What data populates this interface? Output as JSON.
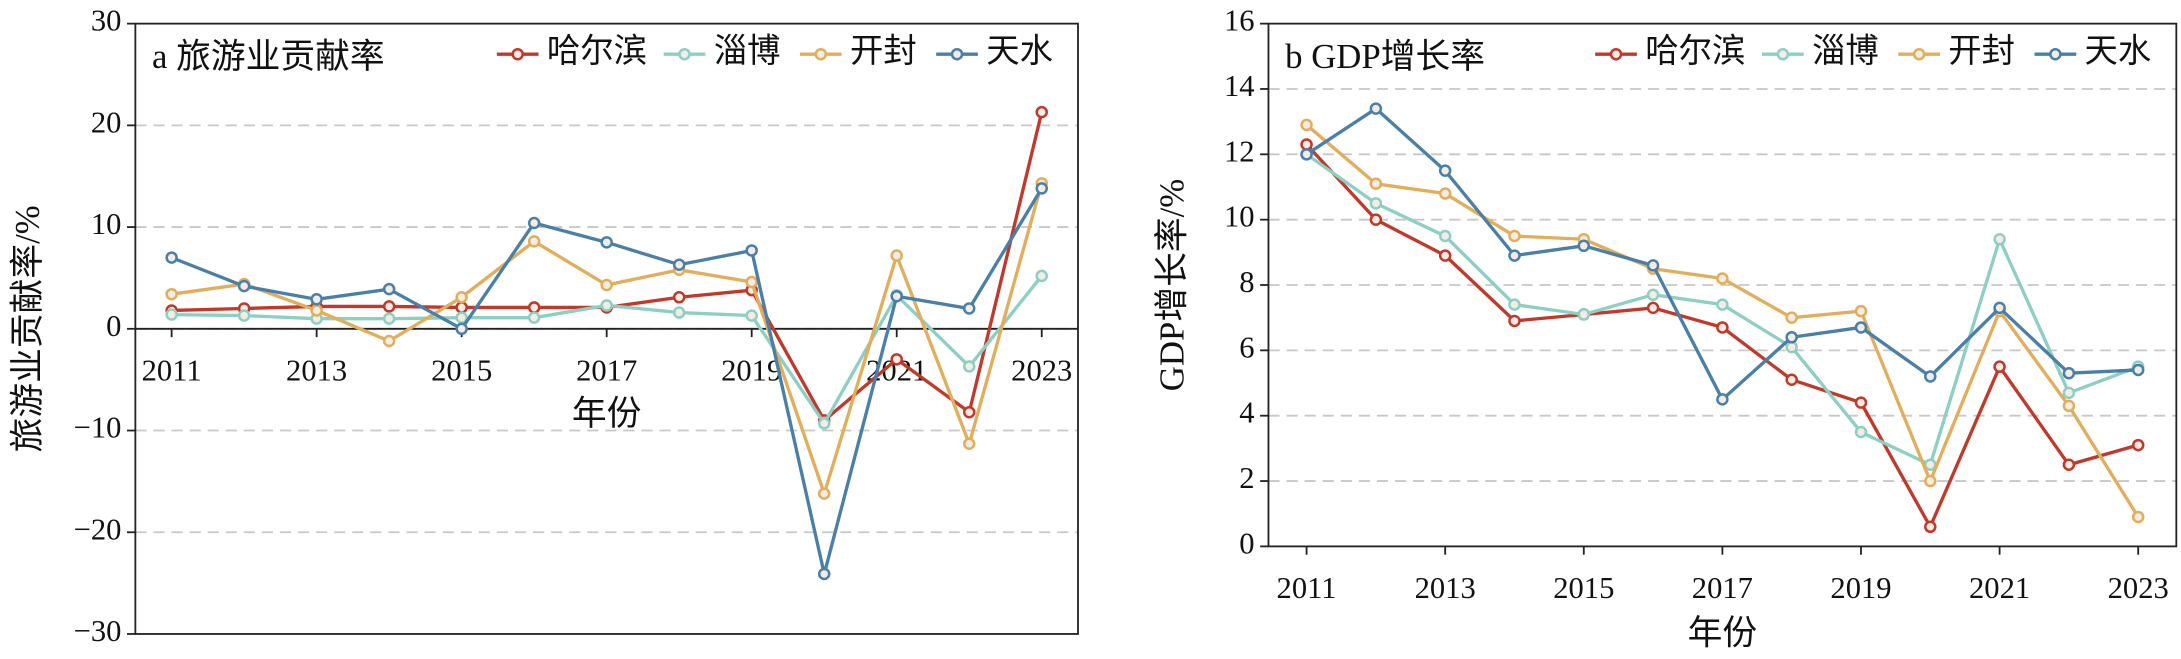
{
  "chart_data": [
    {
      "type": "line",
      "title": "a 旅游业贡献率",
      "ylabel": "旅游业贡献率/%",
      "xlabel": "年份",
      "x": [
        2011,
        2012,
        2013,
        2014,
        2015,
        2016,
        2017,
        2018,
        2019,
        2020,
        2021,
        2022,
        2023
      ],
      "xlim": [
        2010.5,
        2023.5
      ],
      "xticks": [
        2011,
        2013,
        2015,
        2017,
        2019,
        2021,
        2023
      ],
      "ylim": [
        -30,
        30
      ],
      "yticks": [
        {
          "value": -30,
          "label": "−30"
        },
        {
          "value": -20,
          "label": "−20"
        },
        {
          "value": -10,
          "label": "−10"
        },
        0,
        10,
        20,
        30
      ],
      "grid": true,
      "legend": "top-right",
      "series": [
        {
          "name": "哈尔滨",
          "color": "#c0392b",
          "values": [
            1.8,
            2.0,
            2.2,
            2.2,
            2.1,
            2.1,
            2.1,
            3.1,
            3.8,
            -9.0,
            -3.0,
            -8.2,
            21.3
          ]
        },
        {
          "name": "淄博",
          "color": "#8ecfc4",
          "values": [
            1.4,
            1.3,
            1.0,
            1.0,
            1.1,
            1.1,
            2.3,
            1.6,
            1.3,
            -9.3,
            3.3,
            -3.7,
            5.2
          ]
        },
        {
          "name": "开封",
          "color": "#e2ae5c",
          "values": [
            3.4,
            4.4,
            1.8,
            -1.2,
            3.1,
            8.6,
            4.3,
            5.8,
            4.6,
            -16.2,
            7.2,
            -11.3,
            14.3
          ]
        },
        {
          "name": "天水",
          "color": "#4a7fa8",
          "values": [
            7.0,
            4.2,
            2.9,
            3.9,
            0.0,
            10.4,
            8.5,
            6.3,
            7.7,
            -24.1,
            3.2,
            2.0,
            13.8
          ]
        }
      ]
    },
    {
      "type": "line",
      "title": "b GDP增长率",
      "ylabel": "GDP增长率/%",
      "xlabel": "年份",
      "x": [
        2011,
        2012,
        2013,
        2014,
        2015,
        2016,
        2017,
        2018,
        2019,
        2020,
        2021,
        2022,
        2023
      ],
      "xlim": [
        2010.45,
        2023.55
      ],
      "xticks": [
        2011,
        2013,
        2015,
        2017,
        2019,
        2021,
        2023
      ],
      "ylim": [
        0,
        16
      ],
      "yticks": [
        0,
        2,
        4,
        6,
        8,
        10,
        12,
        14,
        16
      ],
      "grid": true,
      "legend": "top-right",
      "series": [
        {
          "name": "哈尔滨",
          "color": "#c0392b",
          "values": [
            12.3,
            10.0,
            8.9,
            6.9,
            7.1,
            7.3,
            6.7,
            5.1,
            4.4,
            0.6,
            5.5,
            2.5,
            3.1
          ]
        },
        {
          "name": "淄博",
          "color": "#8ecfc4",
          "values": [
            12.0,
            10.5,
            9.5,
            7.4,
            7.1,
            7.7,
            7.4,
            6.1,
            3.5,
            2.5,
            9.4,
            4.7,
            5.5
          ]
        },
        {
          "name": "开封",
          "color": "#e2ae5c",
          "values": [
            12.9,
            11.1,
            10.8,
            9.5,
            9.4,
            8.5,
            8.2,
            7.0,
            7.2,
            2.0,
            7.2,
            4.3,
            0.9
          ]
        },
        {
          "name": "天水",
          "color": "#4a7fa8",
          "values": [
            12.0,
            13.4,
            11.5,
            8.9,
            9.2,
            8.6,
            4.5,
            6.4,
            6.7,
            5.2,
            7.3,
            5.3,
            5.4
          ]
        }
      ]
    }
  ]
}
